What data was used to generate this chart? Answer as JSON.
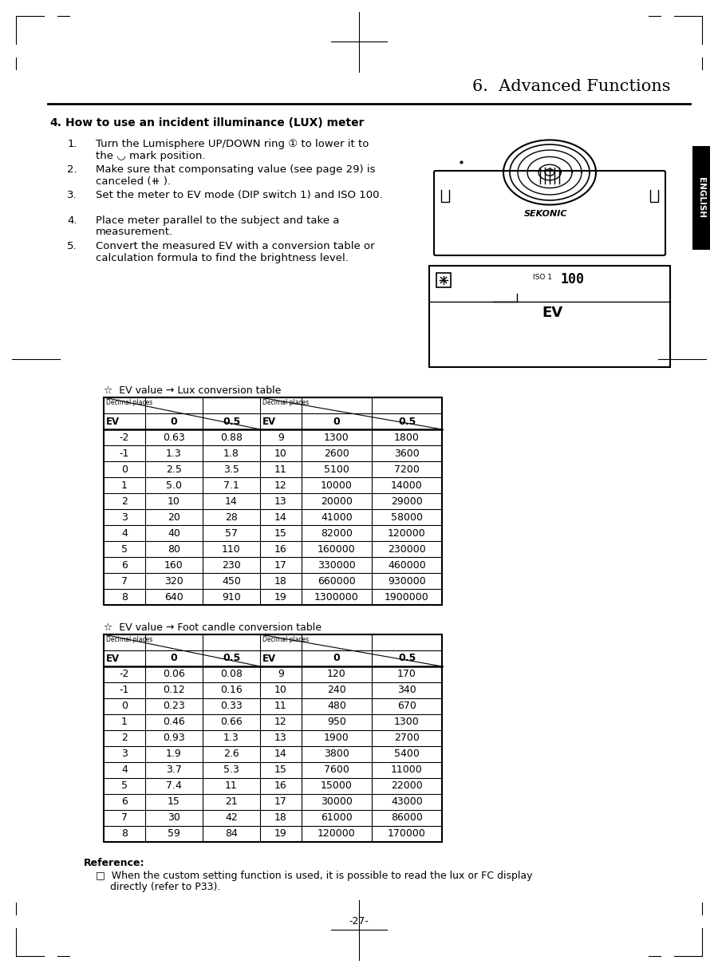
{
  "title": "6.  Advanced Functions",
  "section_num": "4.",
  "section_title": "How to use an incident illuminance (LUX) meter",
  "steps": [
    [
      "1.",
      "Turn the Lumisphere UP/DOWN ring ① to lower it to\nthe ◡ mark position."
    ],
    [
      "2.",
      "Make sure that componsating value (see page 29) is\ncanceled (⧺ )."
    ],
    [
      "3.",
      "Set the meter to EV mode (DIP switch 1) and ISO 100."
    ],
    [
      "4.",
      "Place meter parallel to the subject and take a\nmeasurement."
    ],
    [
      "5.",
      "Convert the measured EV with a conversion table or\ncalculation formula to find the brightness level."
    ]
  ],
  "lux_table_title": "☆  EV value → Lux conversion table",
  "lux_table": {
    "ev_left": [
      "-2",
      "-1",
      "0",
      "1",
      "2",
      "3",
      "4",
      "5",
      "6",
      "7",
      "8"
    ],
    "val0_left": [
      "0.63",
      "1.3",
      "2.5",
      "5.0",
      "10",
      "20",
      "40",
      "80",
      "160",
      "320",
      "640"
    ],
    "val05_left": [
      "0.88",
      "1.8",
      "3.5",
      "7.1",
      "14",
      "28",
      "57",
      "110",
      "230",
      "450",
      "910"
    ],
    "ev_right": [
      "9",
      "10",
      "11",
      "12",
      "13",
      "14",
      "15",
      "16",
      "17",
      "18",
      "19"
    ],
    "val0_right": [
      "1300",
      "2600",
      "5100",
      "10000",
      "20000",
      "41000",
      "82000",
      "160000",
      "330000",
      "660000",
      "1300000"
    ],
    "val05_right": [
      "1800",
      "3600",
      "7200",
      "14000",
      "29000",
      "58000",
      "120000",
      "230000",
      "460000",
      "930000",
      "1900000"
    ]
  },
  "fc_table_title": "☆  EV value → Foot candle conversion table",
  "fc_table": {
    "ev_left": [
      "-2",
      "-1",
      "0",
      "1",
      "2",
      "3",
      "4",
      "5",
      "6",
      "7",
      "8"
    ],
    "val0_left": [
      "0.06",
      "0.12",
      "0.23",
      "0.46",
      "0.93",
      "1.9",
      "3.7",
      "7.4",
      "15",
      "30",
      "59"
    ],
    "val05_left": [
      "0.08",
      "0.16",
      "0.33",
      "0.66",
      "1.3",
      "2.6",
      "5.3",
      "11",
      "21",
      "42",
      "84"
    ],
    "ev_right": [
      "9",
      "10",
      "11",
      "12",
      "13",
      "14",
      "15",
      "16",
      "17",
      "18",
      "19"
    ],
    "val0_right": [
      "120",
      "240",
      "480",
      "950",
      "1900",
      "3800",
      "7600",
      "15000",
      "30000",
      "61000",
      "120000"
    ],
    "val05_right": [
      "170",
      "340",
      "670",
      "1300",
      "2700",
      "5400",
      "11000",
      "22000",
      "43000",
      "86000",
      "170000"
    ]
  },
  "reference_text": "Reference:",
  "reference_bullet": "When the custom setting function is used, it is possible to read the lux or FC display\ndirectly (refer to P33).",
  "page_number": "-27-",
  "bg_color": "#ffffff"
}
